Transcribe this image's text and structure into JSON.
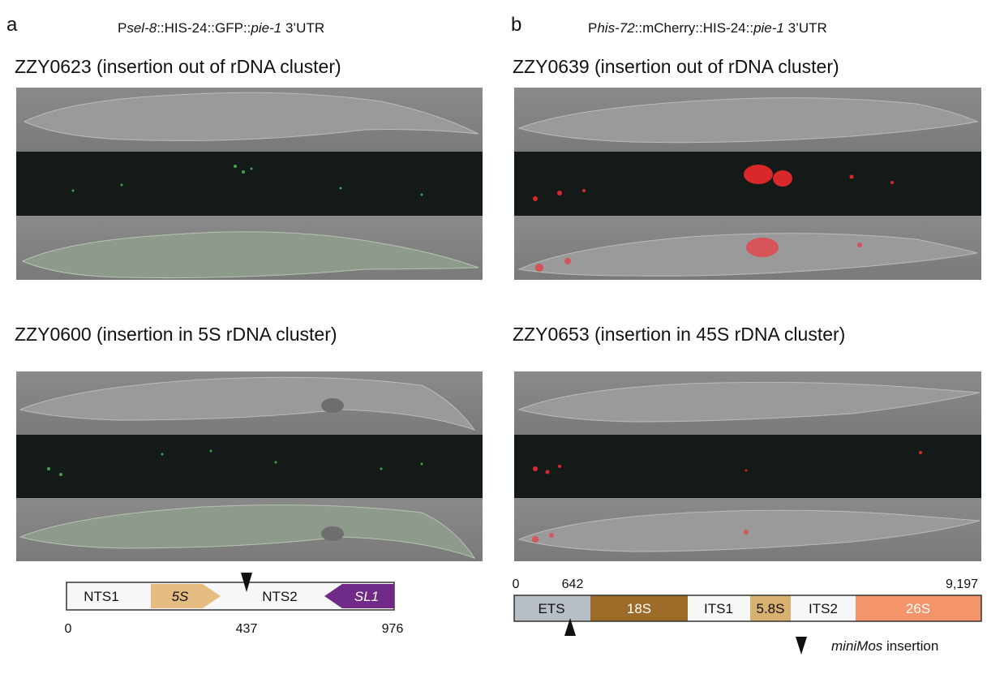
{
  "panel_a": {
    "label": "a",
    "construct": [
      "P",
      "sel-8",
      "::HIS-24::GFP::",
      "pie-1",
      " 3’UTR"
    ],
    "strains": [
      "ZZY0623 (insertion out of rDNA cluster)",
      "ZZY0600 (insertion in 5S rDNA cluster)"
    ],
    "map": {
      "segments": [
        "NTS1",
        "5S",
        "NTS2",
        "SL1"
      ],
      "ticks": [
        0,
        437,
        976
      ]
    }
  },
  "panel_b": {
    "label": "b",
    "construct": [
      "P",
      "his-72",
      "::mCherry::HIS-24::",
      "pie-1",
      " 3’UTR"
    ],
    "strains": [
      "ZZY0639 (insertion out of rDNA cluster)",
      "ZZY0653 (insertion in 45S rDNA cluster)"
    ],
    "map": {
      "segments": [
        "ETS",
        "18S",
        "ITS1",
        "5.8S",
        "ITS2",
        "26S"
      ],
      "ticks": [
        0,
        642,
        {
          "value": 9197,
          "label": "9,197"
        }
      ]
    }
  },
  "legend": [
    "miniMos",
    " insertion"
  ]
}
